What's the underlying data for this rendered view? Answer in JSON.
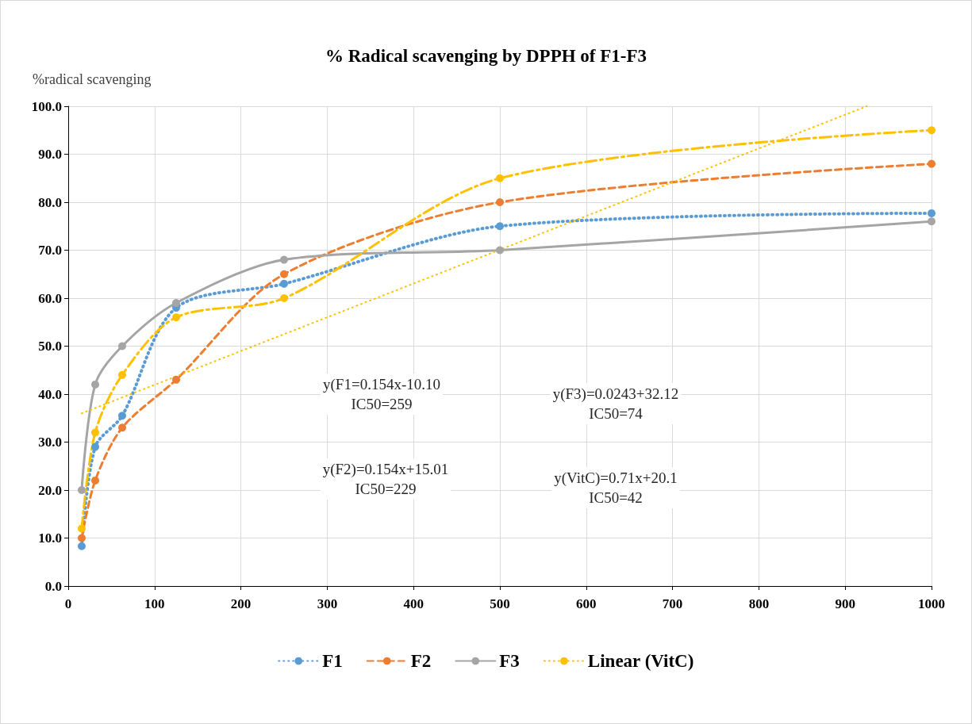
{
  "chart_data": {
    "type": "line",
    "title": "% Radical scavenging by DPPH of F1-F3",
    "ylabel": "%radical scavenging",
    "xlim": [
      0,
      1000
    ],
    "xticks": [
      0,
      100,
      200,
      300,
      400,
      500,
      600,
      700,
      800,
      900,
      1000
    ],
    "ylim": [
      0,
      100
    ],
    "yticks": [
      {
        "value": 0,
        "label": "0.0"
      },
      {
        "value": 10,
        "label": "10.0"
      },
      {
        "value": 20,
        "label": "20.0"
      },
      {
        "value": 30,
        "label": "30.0"
      },
      {
        "value": 40,
        "label": "40.0"
      },
      {
        "value": 50,
        "label": "50.0"
      },
      {
        "value": 60,
        "label": "60.0"
      },
      {
        "value": 70,
        "label": "70.0"
      },
      {
        "value": 80,
        "label": "80.0"
      },
      {
        "value": 90,
        "label": "90.0"
      },
      {
        "value": 100,
        "label": "100.0"
      }
    ],
    "x": [
      15.6,
      31.25,
      62.5,
      125,
      250,
      500,
      1000
    ],
    "series": [
      {
        "name": "F1",
        "color": "#5b9bd5",
        "line_style": "dotted",
        "marker": "circle",
        "values": [
          8.3,
          29,
          35.5,
          58,
          63,
          75,
          77.7
        ]
      },
      {
        "name": "F2",
        "color": "#ed7d31",
        "line_style": "dashed",
        "marker": "circle",
        "values": [
          10,
          22,
          33,
          43,
          65,
          80,
          88
        ]
      },
      {
        "name": "F3",
        "color": "#a5a5a5",
        "line_style": "solid",
        "marker": "circle",
        "values": [
          20,
          42,
          50,
          59,
          68,
          70,
          76
        ]
      },
      {
        "color": "#ffc000",
        "line_style": "dashdot",
        "marker": "circle",
        "values": [
          12,
          32,
          44,
          56,
          60,
          85,
          95
        ]
      },
      {
        "name": "Linear (VitC)",
        "color": "#ffc000",
        "line_style": "dotted",
        "marker": "none",
        "x": [
          15.6,
          925
        ],
        "values": [
          36,
          100
        ]
      }
    ],
    "annotations": [
      "y(F1=0.154x-10.10\nIC50=259",
      "y(F3)=0.0243+32.12\nIC50=74",
      "y(F2)=0.154x+15.01\nIC50=229",
      "y(VitC)=0.71x+20.1\nIC50=42"
    ],
    "grid": true,
    "legend": "bottom"
  }
}
